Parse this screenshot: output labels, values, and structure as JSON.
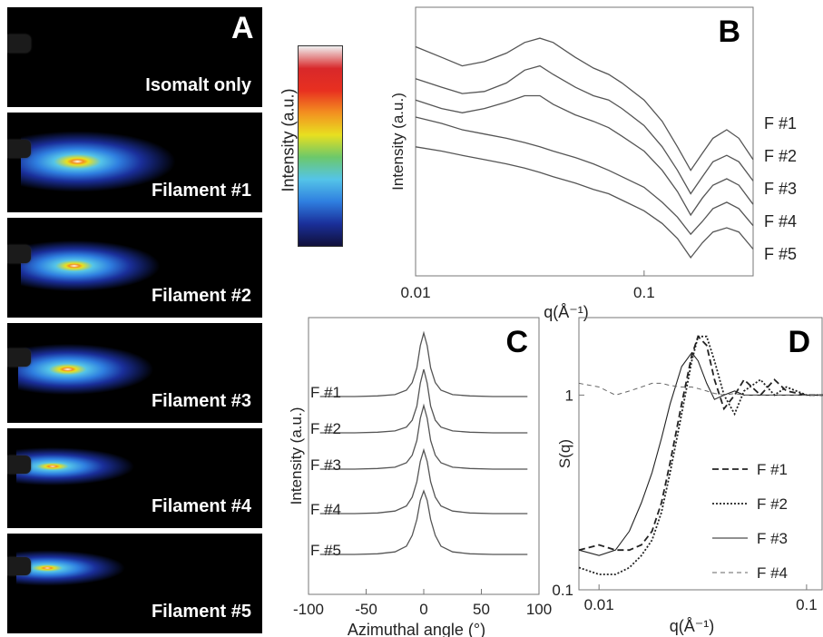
{
  "panel_a": {
    "letter": "A",
    "images": [
      {
        "label": "Isomalt only",
        "blob": 0.0
      },
      {
        "label": "Filament #1",
        "blob": 1.0
      },
      {
        "label": "Filament #2",
        "blob": 0.9
      },
      {
        "label": "Filament #3",
        "blob": 0.85
      },
      {
        "label": "Filament #4",
        "blob": 0.6
      },
      {
        "label": "Filament #5",
        "blob": 0.5
      }
    ],
    "colorbar_label": "Intensity (a.u.)",
    "colorbar_stops": [
      "#10103a",
      "#1a2f9a",
      "#2f7fe0",
      "#54c4e8",
      "#6cc86a",
      "#e8e020",
      "#f39020",
      "#e83020",
      "#d8282a",
      "#f0f0f0"
    ]
  },
  "panel_b": {
    "letter": "B",
    "ylabel": "Intensity (a.u.)",
    "xlabel": "q(Å⁻¹)",
    "xticks": [
      "0.01",
      "0.1"
    ],
    "legend": [
      "F #1",
      "F #2",
      "F #3",
      "F #4",
      "F #5"
    ]
  },
  "panel_c": {
    "letter": "C",
    "ylabel": "Intensity (a.u.)",
    "xlabel": "Azimuthal angle (°)",
    "xticks": [
      "-100",
      "-50",
      "0",
      "50",
      "100"
    ],
    "labels": [
      "F #1",
      "F #2",
      "F #3",
      "F #4",
      "F #5"
    ]
  },
  "panel_d": {
    "letter": "D",
    "ylabel": "S(q)",
    "xlabel": "q(Å⁻¹)",
    "yticks": [
      "1",
      "0.1"
    ],
    "xticks": [
      "0.01",
      "0.1"
    ],
    "legend": [
      "F #1",
      "F #2",
      "F #3",
      "F #4"
    ]
  },
  "chart_data": [
    {
      "type": "line",
      "panel": "B",
      "xscale": "log",
      "xlim": [
        0.01,
        0.3
      ],
      "x": [
        0.01,
        0.013,
        0.016,
        0.02,
        0.025,
        0.03,
        0.035,
        0.04,
        0.05,
        0.06,
        0.07,
        0.08,
        0.1,
        0.12,
        0.14,
        0.16,
        0.18,
        0.2,
        0.23,
        0.26,
        0.3
      ],
      "series": [
        {
          "name": "F #1",
          "values": [
            0.95,
            0.9,
            0.86,
            0.88,
            0.92,
            0.97,
            0.99,
            0.97,
            0.9,
            0.85,
            0.82,
            0.78,
            0.7,
            0.6,
            0.48,
            0.37,
            0.45,
            0.52,
            0.56,
            0.52,
            0.42
          ]
        },
        {
          "name": "F #2",
          "values": [
            0.8,
            0.76,
            0.73,
            0.74,
            0.78,
            0.84,
            0.86,
            0.82,
            0.76,
            0.72,
            0.7,
            0.66,
            0.58,
            0.48,
            0.37,
            0.26,
            0.34,
            0.41,
            0.44,
            0.41,
            0.32
          ]
        },
        {
          "name": "F #3",
          "values": [
            0.7,
            0.66,
            0.64,
            0.66,
            0.69,
            0.72,
            0.72,
            0.68,
            0.63,
            0.6,
            0.57,
            0.53,
            0.46,
            0.37,
            0.27,
            0.16,
            0.24,
            0.3,
            0.33,
            0.3,
            0.21
          ]
        },
        {
          "name": "F #4",
          "values": [
            0.62,
            0.59,
            0.56,
            0.54,
            0.52,
            0.5,
            0.48,
            0.46,
            0.43,
            0.4,
            0.37,
            0.34,
            0.29,
            0.22,
            0.15,
            0.07,
            0.13,
            0.19,
            0.22,
            0.19,
            0.11
          ]
        },
        {
          "name": "F #5",
          "values": [
            0.48,
            0.46,
            0.44,
            0.42,
            0.4,
            0.38,
            0.36,
            0.34,
            0.31,
            0.28,
            0.26,
            0.23,
            0.18,
            0.12,
            0.05,
            -0.04,
            0.03,
            0.08,
            0.1,
            0.08,
            0.0
          ]
        }
      ]
    },
    {
      "type": "line",
      "panel": "C",
      "xlim": [
        -100,
        100
      ],
      "x": [
        -90,
        -60,
        -40,
        -25,
        -15,
        -10,
        -6,
        -3,
        0,
        3,
        6,
        10,
        15,
        25,
        40,
        60,
        90
      ],
      "series": [
        {
          "name": "F #1",
          "values": [
            0,
            0,
            0.01,
            0.03,
            0.1,
            0.22,
            0.45,
            0.8,
            1.0,
            0.8,
            0.45,
            0.22,
            0.1,
            0.03,
            0.01,
            0,
            0
          ]
        },
        {
          "name": "F #2",
          "values": [
            0,
            0,
            0.01,
            0.03,
            0.09,
            0.2,
            0.42,
            0.78,
            1.0,
            0.78,
            0.42,
            0.2,
            0.09,
            0.03,
            0.01,
            0,
            0
          ]
        },
        {
          "name": "F #3",
          "values": [
            0,
            0,
            0.01,
            0.03,
            0.1,
            0.22,
            0.45,
            0.8,
            1.0,
            0.8,
            0.45,
            0.22,
            0.1,
            0.03,
            0.01,
            0,
            0
          ]
        },
        {
          "name": "F #4",
          "values": [
            0,
            0,
            0.01,
            0.04,
            0.12,
            0.26,
            0.5,
            0.82,
            1.0,
            0.82,
            0.5,
            0.26,
            0.12,
            0.04,
            0.01,
            0,
            0
          ]
        },
        {
          "name": "F #5",
          "values": [
            0,
            0,
            0.01,
            0.04,
            0.13,
            0.3,
            0.55,
            0.85,
            1.0,
            0.85,
            0.55,
            0.3,
            0.13,
            0.04,
            0.01,
            0,
            0
          ]
        }
      ]
    },
    {
      "type": "line",
      "panel": "D",
      "xscale": "log",
      "yscale": "log",
      "xlim": [
        0.008,
        0.12
      ],
      "ylim": [
        0.1,
        2.5
      ],
      "x": [
        0.008,
        0.01,
        0.012,
        0.014,
        0.016,
        0.018,
        0.02,
        0.022,
        0.025,
        0.028,
        0.03,
        0.033,
        0.036,
        0.04,
        0.045,
        0.05,
        0.06,
        0.07,
        0.08,
        0.1,
        0.12
      ],
      "series": [
        {
          "name": "F #1",
          "values": [
            0.16,
            0.17,
            0.16,
            0.16,
            0.17,
            0.2,
            0.28,
            0.45,
            0.9,
            1.6,
            2.0,
            1.8,
            1.2,
            0.85,
            1.0,
            1.2,
            1.0,
            1.2,
            1.05,
            1.0,
            1.0
          ]
        },
        {
          "name": "F #2",
          "values": [
            0.13,
            0.12,
            0.12,
            0.13,
            0.15,
            0.18,
            0.25,
            0.4,
            0.8,
            1.5,
            2.0,
            2.0,
            1.5,
            1.0,
            0.8,
            1.05,
            1.2,
            1.0,
            1.1,
            1.0,
            1.0
          ]
        },
        {
          "name": "F #3",
          "values": [
            0.16,
            0.15,
            0.16,
            0.2,
            0.28,
            0.4,
            0.6,
            0.9,
            1.4,
            1.65,
            1.5,
            1.15,
            0.95,
            1.0,
            1.05,
            1.0,
            1.0,
            1.0,
            1.0,
            1.0,
            1.0
          ]
        },
        {
          "name": "F #4",
          "values": [
            1.15,
            1.1,
            1.0,
            1.05,
            1.1,
            1.15,
            1.15,
            1.12,
            1.1,
            1.1,
            1.08,
            1.05,
            1.02,
            1.0,
            1.02,
            1.0,
            1.0,
            1.0,
            1.0,
            1.0,
            1.0
          ]
        }
      ]
    }
  ]
}
